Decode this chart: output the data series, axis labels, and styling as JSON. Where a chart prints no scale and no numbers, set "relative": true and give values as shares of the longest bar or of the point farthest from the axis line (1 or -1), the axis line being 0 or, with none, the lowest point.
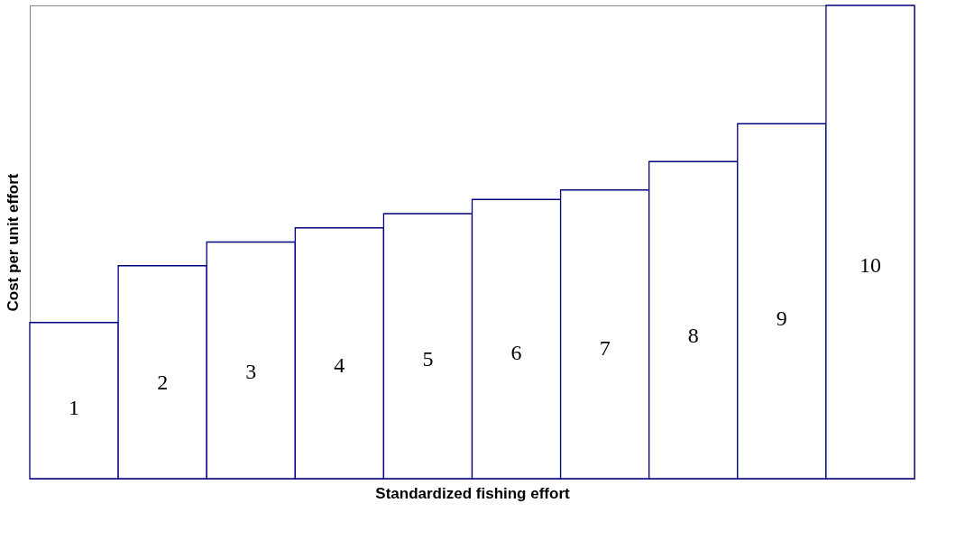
{
  "chart_data": {
    "type": "bar",
    "relative": true,
    "xlabel": "Standardized fishing effort",
    "ylabel": "Cost per unit effort",
    "categories": [
      "1",
      "2",
      "3",
      "4",
      "5",
      "6",
      "7",
      "8",
      "9",
      "10"
    ],
    "series": [
      {
        "color": "#000080",
        "values": [
          0.33,
          0.45,
          0.5,
          0.53,
          0.56,
          0.59,
          0.61,
          0.67,
          0.75,
          1.0
        ]
      }
    ],
    "grid": false
  }
}
